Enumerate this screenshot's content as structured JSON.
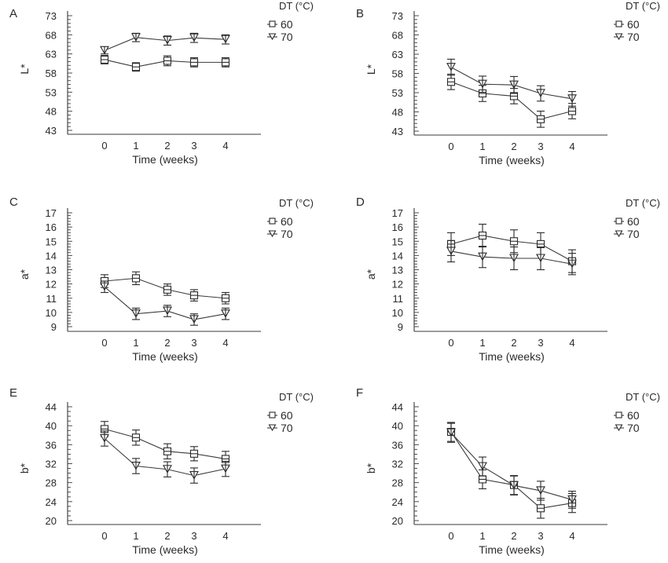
{
  "chart_data": [
    {
      "type": "line",
      "panel": "A",
      "title": "",
      "xlabel": "Time (weeks)",
      "ylabel": "L*",
      "x": [
        0,
        1,
        2,
        3,
        4
      ],
      "x_tick_labels": [
        "0",
        "1",
        "2",
        "3",
        "4"
      ],
      "ylim": [
        43,
        73
      ],
      "y_ticks": [
        43,
        48,
        53,
        58,
        63,
        68,
        73
      ],
      "y_tick_labels": [
        "43",
        "48",
        "53",
        "58",
        "63",
        "68",
        "73"
      ],
      "y_minor_step": 1,
      "legend": {
        "title": "DT (°C)",
        "placement": "top-right"
      },
      "grid": false,
      "series": [
        {
          "name": "60",
          "marker": "square",
          "values": [
            61.5,
            59.6,
            61.2,
            60.8,
            60.8
          ],
          "errors": [
            1.1,
            1.1,
            1.3,
            1.2,
            1.2
          ]
        },
        {
          "name": "70",
          "marker": "triangle-down",
          "values": [
            63.9,
            67.3,
            66.5,
            67.2,
            66.8
          ],
          "errors": [
            0.9,
            1.1,
            1.2,
            1.2,
            1.2
          ]
        }
      ]
    },
    {
      "type": "line",
      "panel": "B",
      "title": "",
      "xlabel": "Time (weeks)",
      "ylabel": "L*",
      "x": [
        0,
        1,
        2,
        3,
        4
      ],
      "x_tick_labels": [
        "0",
        "1",
        "2",
        "3",
        "4"
      ],
      "ylim": [
        43,
        73
      ],
      "y_ticks": [
        43,
        48,
        53,
        58,
        63,
        68,
        73
      ],
      "y_tick_labels": [
        "43",
        "48",
        "53",
        "58",
        "63",
        "68",
        "73"
      ],
      "y_minor_step": 1,
      "legend": {
        "title": "DT (°C)",
        "placement": "top-right"
      },
      "grid": false,
      "series": [
        {
          "name": "60",
          "marker": "square",
          "values": [
            55.8,
            52.8,
            52.1,
            46.1,
            48.2
          ],
          "errors": [
            2.0,
            2.1,
            2.0,
            2.1,
            2.0
          ]
        },
        {
          "name": "70",
          "marker": "triangle-down",
          "values": [
            59.6,
            55.2,
            55.0,
            52.8,
            51.4
          ],
          "errors": [
            2.1,
            2.1,
            2.2,
            2.0,
            1.9
          ]
        }
      ]
    },
    {
      "type": "line",
      "panel": "C",
      "title": "",
      "xlabel": "Time (weeks)",
      "ylabel": "a*",
      "x": [
        0,
        1,
        2,
        3,
        4
      ],
      "x_tick_labels": [
        "0",
        "1",
        "2",
        "3",
        "4"
      ],
      "ylim": [
        9,
        17
      ],
      "y_ticks": [
        9,
        10,
        11,
        12,
        13,
        14,
        15,
        16,
        17
      ],
      "y_tick_labels": [
        "9",
        "10",
        "11",
        "12",
        "13",
        "14",
        "15",
        "16",
        "17"
      ],
      "y_minor_step": 0.2,
      "legend": {
        "title": "DT (°C)",
        "placement": "top-right"
      },
      "grid": false,
      "series": [
        {
          "name": "60",
          "marker": "square",
          "values": [
            12.2,
            12.4,
            11.6,
            11.2,
            11.0
          ],
          "errors": [
            0.45,
            0.45,
            0.4,
            0.4,
            0.4
          ]
        },
        {
          "name": "70",
          "marker": "triangle-down",
          "values": [
            11.8,
            9.9,
            10.1,
            9.5,
            9.9
          ],
          "errors": [
            0.4,
            0.4,
            0.4,
            0.4,
            0.4
          ]
        }
      ]
    },
    {
      "type": "line",
      "panel": "D",
      "title": "",
      "xlabel": "Time (weeks)",
      "ylabel": "a*",
      "x": [
        0,
        1,
        2,
        3,
        4
      ],
      "x_tick_labels": [
        "0",
        "1",
        "2",
        "3",
        "4"
      ],
      "ylim": [
        9,
        17
      ],
      "y_ticks": [
        9,
        10,
        11,
        12,
        13,
        14,
        15,
        16,
        17
      ],
      "y_tick_labels": [
        "9",
        "10",
        "11",
        "12",
        "13",
        "14",
        "15",
        "16",
        "17"
      ],
      "y_minor_step": 0.2,
      "legend": {
        "title": "DT (°C)",
        "placement": "top-right"
      },
      "grid": false,
      "series": [
        {
          "name": "60",
          "marker": "square",
          "values": [
            14.8,
            15.4,
            15.0,
            14.8,
            13.6
          ],
          "errors": [
            0.8,
            0.8,
            0.8,
            0.8,
            0.8
          ]
        },
        {
          "name": "70",
          "marker": "triangle-down",
          "values": [
            14.3,
            13.9,
            13.8,
            13.8,
            13.4
          ],
          "errors": [
            0.75,
            0.75,
            0.8,
            0.8,
            0.75
          ]
        }
      ]
    },
    {
      "type": "line",
      "panel": "E",
      "title": "",
      "xlabel": "Time (weeks)",
      "ylabel": "b*",
      "x": [
        0,
        1,
        2,
        3,
        4
      ],
      "x_tick_labels": [
        "0",
        "1",
        "2",
        "3",
        "4"
      ],
      "ylim": [
        20,
        44
      ],
      "y_ticks": [
        20,
        24,
        28,
        32,
        36,
        40,
        44
      ],
      "y_tick_labels": [
        "20",
        "24",
        "28",
        "32",
        "36",
        "40",
        "44"
      ],
      "y_minor_step": 1,
      "legend": {
        "title": "DT (°C)",
        "placement": "top-right"
      },
      "grid": false,
      "series": [
        {
          "name": "60",
          "marker": "square",
          "values": [
            39.3,
            37.5,
            34.6,
            34.1,
            33.0
          ],
          "errors": [
            1.6,
            1.6,
            1.6,
            1.5,
            1.6
          ]
        },
        {
          "name": "70",
          "marker": "triangle-down",
          "values": [
            37.3,
            31.5,
            30.8,
            29.5,
            30.9
          ],
          "errors": [
            1.6,
            1.6,
            1.6,
            1.6,
            1.6
          ]
        }
      ]
    },
    {
      "type": "line",
      "panel": "F",
      "title": "",
      "xlabel": "Time (weeks)",
      "ylabel": "b*",
      "x": [
        0,
        1,
        2,
        3,
        4
      ],
      "x_tick_labels": [
        "0",
        "1",
        "2",
        "3",
        "4"
      ],
      "ylim": [
        20,
        44
      ],
      "y_ticks": [
        20,
        24,
        28,
        32,
        36,
        40,
        44
      ],
      "y_tick_labels": [
        "20",
        "24",
        "28",
        "32",
        "36",
        "40",
        "44"
      ],
      "y_minor_step": 1,
      "legend": {
        "title": "DT (°C)",
        "placement": "top-right"
      },
      "grid": false,
      "series": [
        {
          "name": "60",
          "marker": "square",
          "values": [
            38.7,
            28.7,
            27.5,
            22.6,
            23.7
          ],
          "errors": [
            2.0,
            2.0,
            2.0,
            2.1,
            2.0
          ]
        },
        {
          "name": "70",
          "marker": "triangle-down",
          "values": [
            38.5,
            31.4,
            27.4,
            26.3,
            24.4
          ],
          "errors": [
            2.0,
            2.0,
            2.0,
            2.0,
            1.8
          ]
        }
      ]
    }
  ]
}
